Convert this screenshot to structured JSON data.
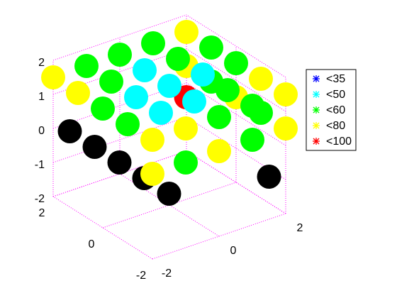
{
  "chart_data": {
    "type": "scatter3d",
    "xlim": [
      -2,
      2
    ],
    "ylim": [
      -2,
      2
    ],
    "zlim": [
      -2,
      2
    ],
    "xticks": [
      -2,
      0,
      2
    ],
    "yticks": [
      -2,
      0,
      2
    ],
    "zticks": [
      -2,
      -1,
      0,
      1,
      2
    ],
    "grid": true,
    "grid_color": "#ff00ff",
    "legend_position": "east",
    "series": [
      {
        "name": "<35",
        "color": "#0000ff",
        "x": [],
        "y": [],
        "z": []
      },
      {
        "name": "<50",
        "color": "#00ffff",
        "x": [
          0,
          -1,
          0,
          1,
          -1,
          0
        ],
        "y": [
          1,
          0,
          0,
          0,
          -1,
          -1
        ],
        "z": [
          1.5,
          1.5,
          1.5,
          1.5,
          1.5,
          1.5
        ]
      },
      {
        "name": "<60",
        "color": "#00ff00",
        "x": [
          -1,
          0,
          1,
          -1,
          1,
          2,
          -2,
          2,
          -2,
          1,
          0,
          1,
          -1,
          1,
          2,
          2
        ],
        "y": [
          2,
          2,
          2,
          1,
          1,
          1,
          0,
          0,
          -1,
          -1,
          -2,
          -2,
          -2,
          -2,
          -1,
          1
        ],
        "z": [
          1.5,
          1.5,
          1.5,
          1.5,
          1.5,
          1.5,
          1.5,
          1.5,
          1.5,
          1.5,
          1.5,
          1.5,
          0.5,
          0.5,
          0.5,
          0.5
        ]
      },
      {
        "name": "<80",
        "color": "#ffff00",
        "x": [
          -2,
          2,
          -2,
          2,
          -2,
          -1,
          2,
          -2,
          0,
          2,
          2,
          2
        ],
        "y": [
          2,
          2,
          1,
          -1,
          -2,
          -2,
          -2,
          -2,
          -2,
          -2,
          0,
          2
        ],
        "z": [
          1.5,
          1.5,
          1.5,
          1.5,
          1.5,
          1.5,
          1.5,
          0.5,
          0.5,
          0.5,
          0.5,
          0.5
        ]
      },
      {
        "name": "<100",
        "color": "#ff0000",
        "x": [
          0.5
        ],
        "y": [
          0
        ],
        "z": [
          1
        ]
      },
      {
        "color": "#000000",
        "x": [
          -1.5,
          -1.5,
          -1.5,
          -1.5,
          -1.5,
          1.5
        ],
        "y": [
          2,
          1,
          0,
          -1,
          -2,
          -2
        ],
        "z": [
          -0.25,
          -0.25,
          -0.25,
          -0.25,
          -0.25,
          -0.75
        ]
      }
    ]
  }
}
